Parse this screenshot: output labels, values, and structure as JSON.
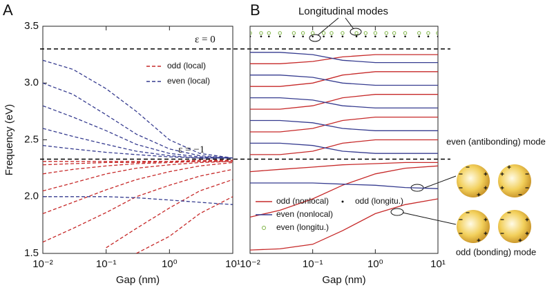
{
  "chart_data": [
    {
      "type": "line",
      "panel_label": "A",
      "xscale": "log",
      "xlabel": "Gap  (nm)",
      "ylabel": "Frequency (eV)",
      "xlim": [
        0.01,
        10
      ],
      "ylim": [
        1.5,
        3.5
      ],
      "xticks": [
        {
          "value": 0.01,
          "label": "10⁻²"
        },
        {
          "value": 0.1,
          "label": "10⁻¹"
        },
        {
          "value": 1,
          "label": "10⁰"
        },
        {
          "value": 10,
          "label": "10¹"
        }
      ],
      "yticks": [
        1.5,
        {
          "value": 2,
          "label": "2.0"
        },
        2.5,
        {
          "value": 3,
          "label": "3.0"
        },
        3.5
      ],
      "legend": "upper right",
      "reference_lines": [
        {
          "value": 3.3,
          "label": "ε = 0"
        },
        {
          "value": 2.33,
          "label": "ε = −1"
        }
      ],
      "x": [
        0.01,
        0.03,
        0.1,
        0.3,
        1,
        3,
        10
      ],
      "series": [
        {
          "name": "odd  (local)",
          "color": "#c62828",
          "dash": true,
          "curves": [
            [
              2.31,
              2.31,
              2.31,
              2.31,
              2.31,
              2.32,
              2.32
            ],
            [
              2.28,
              2.29,
              2.3,
              2.3,
              2.31,
              2.31,
              2.32
            ],
            [
              2.2,
              2.24,
              2.27,
              2.29,
              2.3,
              2.31,
              2.31
            ],
            [
              2.05,
              2.12,
              2.2,
              2.25,
              2.28,
              2.3,
              2.31
            ],
            [
              1.85,
              1.95,
              2.06,
              2.15,
              2.22,
              2.27,
              2.3
            ],
            [
              1.6,
              1.72,
              1.86,
              2.0,
              2.1,
              2.18,
              2.24
            ],
            [
              null,
              null,
              1.55,
              1.72,
              1.9,
              2.05,
              2.15
            ],
            [
              null,
              null,
              null,
              1.5,
              1.65,
              1.85,
              2.0
            ]
          ]
        },
        {
          "name": "even (local)",
          "color": "#353b8f",
          "dash": true,
          "curves": [
            [
              3.2,
              3.12,
              2.95,
              2.75,
              2.5,
              2.38,
              2.34
            ],
            [
              3.0,
              2.9,
              2.72,
              2.55,
              2.42,
              2.36,
              2.34
            ],
            [
              2.8,
              2.7,
              2.58,
              2.46,
              2.38,
              2.35,
              2.34
            ],
            [
              2.6,
              2.53,
              2.46,
              2.4,
              2.36,
              2.34,
              2.34
            ],
            [
              2.45,
              2.42,
              2.39,
              2.37,
              2.35,
              2.34,
              2.34
            ],
            [
              2.0,
              2.0,
              2.0,
              1.99,
              1.97,
              1.95,
              1.93
            ]
          ]
        }
      ]
    },
    {
      "type": "line",
      "panel_label": "B",
      "xscale": "log",
      "xlabel": "Gap  (nm)",
      "xlim": [
        0.01,
        10
      ],
      "ylim": [
        1.5,
        3.5
      ],
      "xticks": [
        {
          "value": 0.01,
          "label": "10⁻²"
        },
        {
          "value": 0.1,
          "label": "10⁻¹"
        },
        {
          "value": 1,
          "label": "10⁰"
        },
        {
          "value": 10,
          "label": "10¹"
        }
      ],
      "legend": "lower left",
      "annotations": [
        "Longitudinal modes",
        "even (antibonding) mode",
        "odd (bonding) mode"
      ],
      "x": [
        0.01,
        0.03,
        0.1,
        0.3,
        1,
        3,
        10
      ],
      "series": [
        {
          "name": "odd (nonlocal)",
          "color": "#c62828",
          "curves": [
            [
              1.53,
              1.54,
              1.58,
              1.7,
              1.85,
              1.93,
              1.98
            ],
            [
              1.82,
              1.88,
              1.98,
              2.1,
              2.2,
              2.25,
              2.27
            ],
            [
              2.22,
              2.24,
              2.26,
              2.28,
              2.29,
              2.3,
              2.3
            ],
            [
              2.37,
              2.37,
              2.4,
              2.47,
              2.5,
              2.5,
              2.5
            ],
            [
              2.57,
              2.57,
              2.6,
              2.67,
              2.7,
              2.7,
              2.7
            ],
            [
              2.77,
              2.77,
              2.8,
              2.87,
              2.9,
              2.9,
              2.9
            ],
            [
              2.97,
              2.97,
              3.0,
              3.07,
              3.1,
              3.1,
              3.1
            ],
            [
              3.17,
              3.17,
              3.19,
              3.23,
              3.25,
              3.25,
              3.25
            ]
          ]
        },
        {
          "name": "even (nonlocal)",
          "color": "#353b8f",
          "curves": [
            [
              2.12,
              2.12,
              2.12,
              2.11,
              2.1,
              2.08,
              2.07
            ],
            [
              2.47,
              2.47,
              2.45,
              2.4,
              2.38,
              2.38,
              2.38
            ],
            [
              2.67,
              2.67,
              2.65,
              2.6,
              2.58,
              2.58,
              2.58
            ],
            [
              2.87,
              2.87,
              2.85,
              2.8,
              2.78,
              2.78,
              2.78
            ],
            [
              3.07,
              3.07,
              3.05,
              3.0,
              2.98,
              2.98,
              2.98
            ],
            [
              3.27,
              3.27,
              3.25,
              3.2,
              3.18,
              3.18,
              3.18
            ]
          ]
        },
        {
          "name": "even (longitu.)",
          "color": "#7cb342",
          "marker": "circle",
          "x": [
            0.01,
            0.015,
            0.02,
            0.03,
            0.05,
            0.07,
            0.1,
            0.15,
            0.2,
            0.3,
            0.5,
            0.7,
            1,
            1.5,
            2,
            3,
            5,
            7,
            10
          ],
          "values": [
            3.44,
            3.44,
            3.44,
            3.44,
            3.44,
            3.44,
            3.44,
            3.44,
            3.44,
            3.44,
            3.44,
            3.44,
            3.44,
            3.44,
            3.44,
            3.44,
            3.44,
            3.44,
            3.44
          ]
        },
        {
          "name": "odd (longitu.)",
          "color": "#111111",
          "marker": "dot",
          "x": [
            0.01,
            0.015,
            0.02,
            0.03,
            0.05,
            0.07,
            0.1,
            0.15,
            0.2,
            0.3,
            0.5,
            0.7,
            1,
            1.5,
            2,
            3,
            5,
            7,
            10
          ],
          "values": [
            3.41,
            3.41,
            3.41,
            3.41,
            3.41,
            3.41,
            3.41,
            3.41,
            3.41,
            3.41,
            3.41,
            3.41,
            3.41,
            3.41,
            3.41,
            3.41,
            3.41,
            3.41,
            3.41
          ]
        }
      ]
    }
  ]
}
